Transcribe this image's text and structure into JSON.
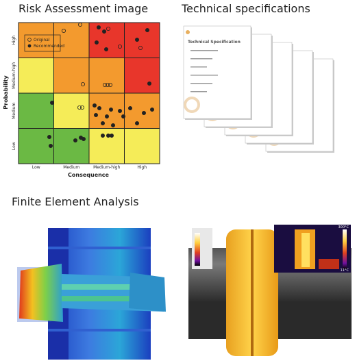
{
  "risk_assessment": {
    "title": "Risk Assessment image",
    "y_label": "Probability",
    "x_label": "Consequence",
    "y_categories": [
      "High",
      "Medium-high",
      "Medium",
      "Low"
    ],
    "x_categories": [
      "Low",
      "Medium",
      "Medium-high",
      "High"
    ],
    "legend": [
      "Original",
      "Recommended"
    ]
  },
  "technical_specifications": {
    "title": "Technical specifications",
    "document_title": "Technical Specification"
  },
  "finite_element_analysis": {
    "title": "Finite Element Analysis",
    "thermal_max": "300°C",
    "thermal_min": "11°C"
  }
}
